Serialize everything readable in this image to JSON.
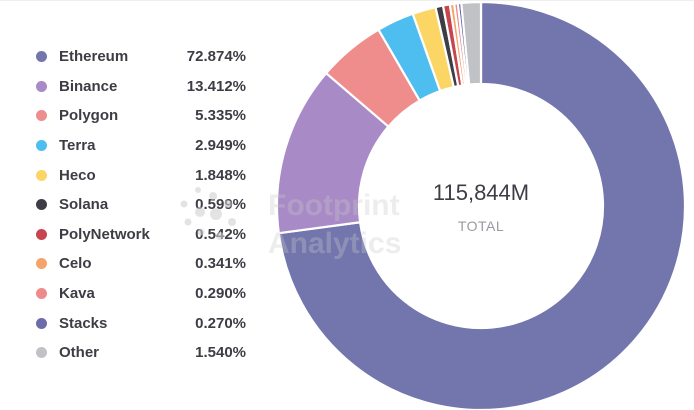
{
  "chart_data": {
    "type": "pie",
    "variant": "donut",
    "categories": [
      "Ethereum",
      "Binance",
      "Polygon",
      "Terra",
      "Heco",
      "Solana",
      "PolyNetwork",
      "Celo",
      "Kava",
      "Stacks",
      "Other"
    ],
    "values": [
      72.874,
      13.412,
      5.335,
      2.949,
      1.848,
      0.599,
      0.542,
      0.341,
      0.29,
      0.27,
      1.54
    ],
    "value_labels": [
      "72.874%",
      "13.412%",
      "5.335%",
      "2.949%",
      "1.848%",
      "0.599%",
      "0.542%",
      "0.341%",
      "0.290%",
      "0.270%",
      "1.540%"
    ],
    "colors": [
      "#7375ad",
      "#a88ac7",
      "#ef8c8c",
      "#4ebef0",
      "#fbd665",
      "#3d3d45",
      "#c7454f",
      "#f4a46a",
      "#ee8a8a",
      "#6d6ba9",
      "#c0c2c6"
    ],
    "legend_position": "left",
    "center_value": "115,844M",
    "center_label": "TOTAL"
  },
  "watermark": {
    "line1": "Footprint",
    "line2": "Analytics"
  }
}
